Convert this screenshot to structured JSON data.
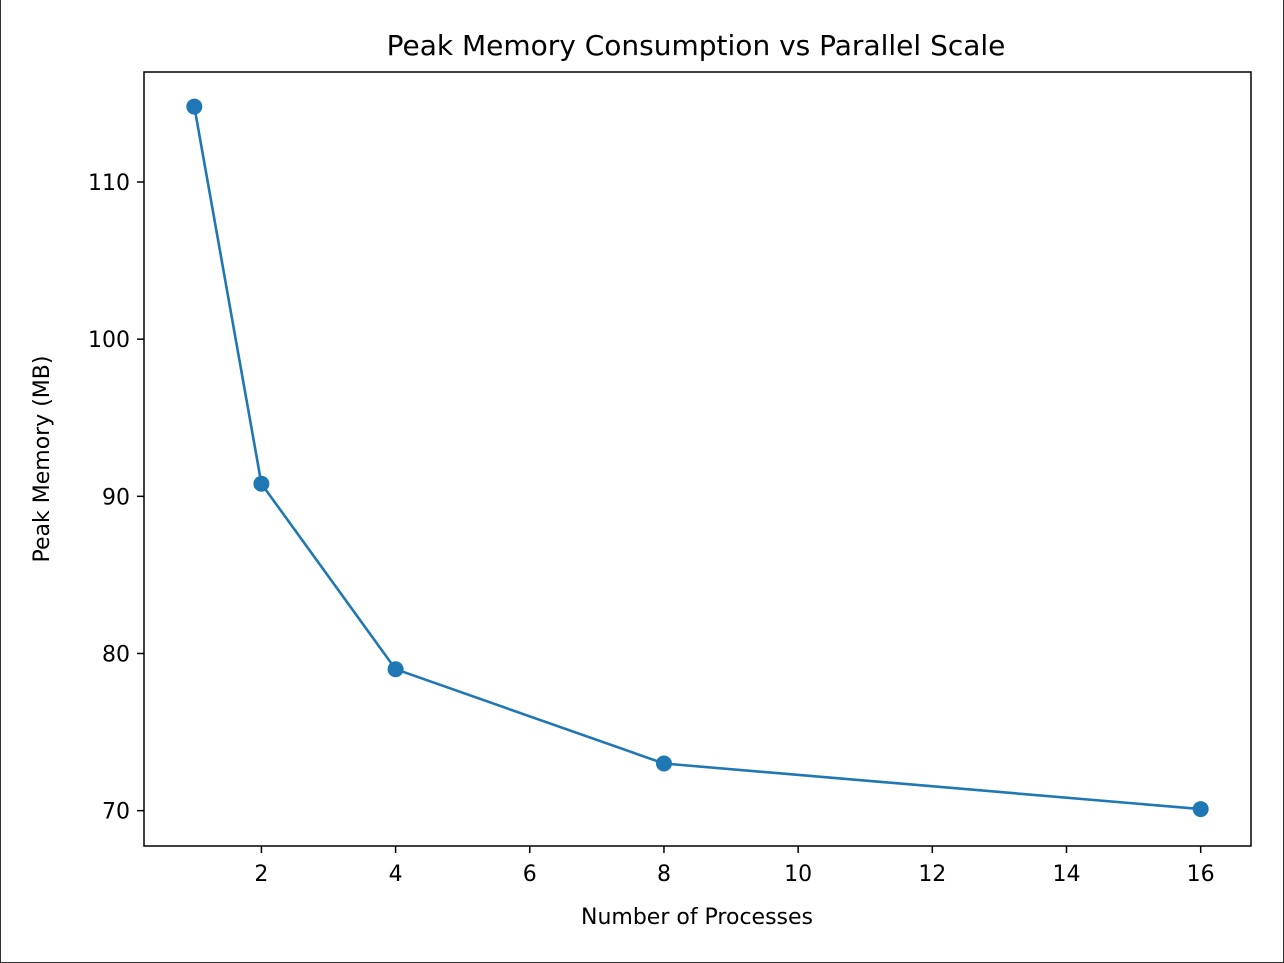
{
  "chart_data": {
    "type": "line",
    "title": "Peak Memory Consumption vs Parallel Scale",
    "xlabel": "Number of Processes",
    "ylabel": "Peak Memory (MB)",
    "xlim": [
      0.25,
      16.75
    ],
    "ylim": [
      67.75,
      117.0
    ],
    "xticks": [
      2,
      4,
      6,
      8,
      10,
      12,
      14,
      16
    ],
    "yticks": [
      70,
      80,
      90,
      100,
      110
    ],
    "grid": false,
    "legend": "none",
    "series": [
      {
        "color": "#1f77b4",
        "marker": "circle",
        "x": [
          1,
          2,
          4,
          8,
          16
        ],
        "y": [
          114.8,
          90.8,
          79.0,
          73.0,
          70.1
        ]
      }
    ]
  }
}
